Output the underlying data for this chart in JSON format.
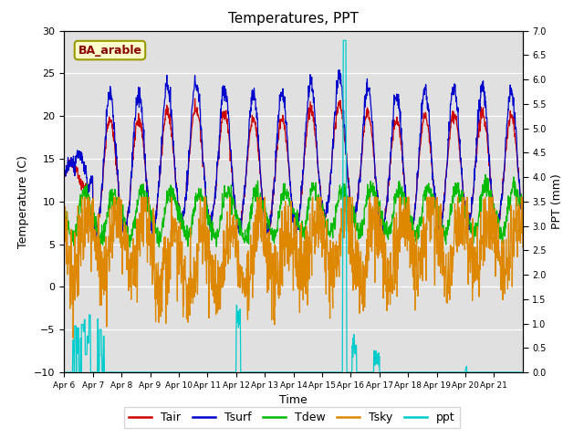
{
  "title": "Temperatures, PPT",
  "xlabel": "Time",
  "ylabel_left": "Temperature (C)",
  "ylabel_right": "PPT (mm)",
  "label_text": "BA_arable",
  "ylim_left": [
    -10,
    30
  ],
  "ylim_right": [
    0.0,
    7.0
  ],
  "yticks_left": [
    -10,
    -5,
    0,
    5,
    10,
    15,
    20,
    25,
    30
  ],
  "yticks_right": [
    0.0,
    0.5,
    1.0,
    1.5,
    2.0,
    2.5,
    3.0,
    3.5,
    4.0,
    4.5,
    5.0,
    5.5,
    6.0,
    6.5,
    7.0
  ],
  "colors": {
    "Tair": "#cc0000",
    "Tsurf": "#0000cc",
    "Tdew": "#00bb00",
    "Tsky": "#dd8800",
    "ppt": "#00cccc"
  },
  "bg_color": "#e0e0e0",
  "xtick_dates": [
    "Apr 6",
    "Apr 7",
    "Apr 8",
    "Apr 9",
    "Apr 10",
    "Apr 11",
    "Apr 12",
    "Apr 13",
    "Apr 14",
    "Apr 15",
    "Apr 16",
    "Apr 17",
    "Apr 18",
    "Apr 19",
    "Apr 20",
    "Apr 21"
  ],
  "figsize": [
    6.4,
    4.8
  ],
  "dpi": 100
}
